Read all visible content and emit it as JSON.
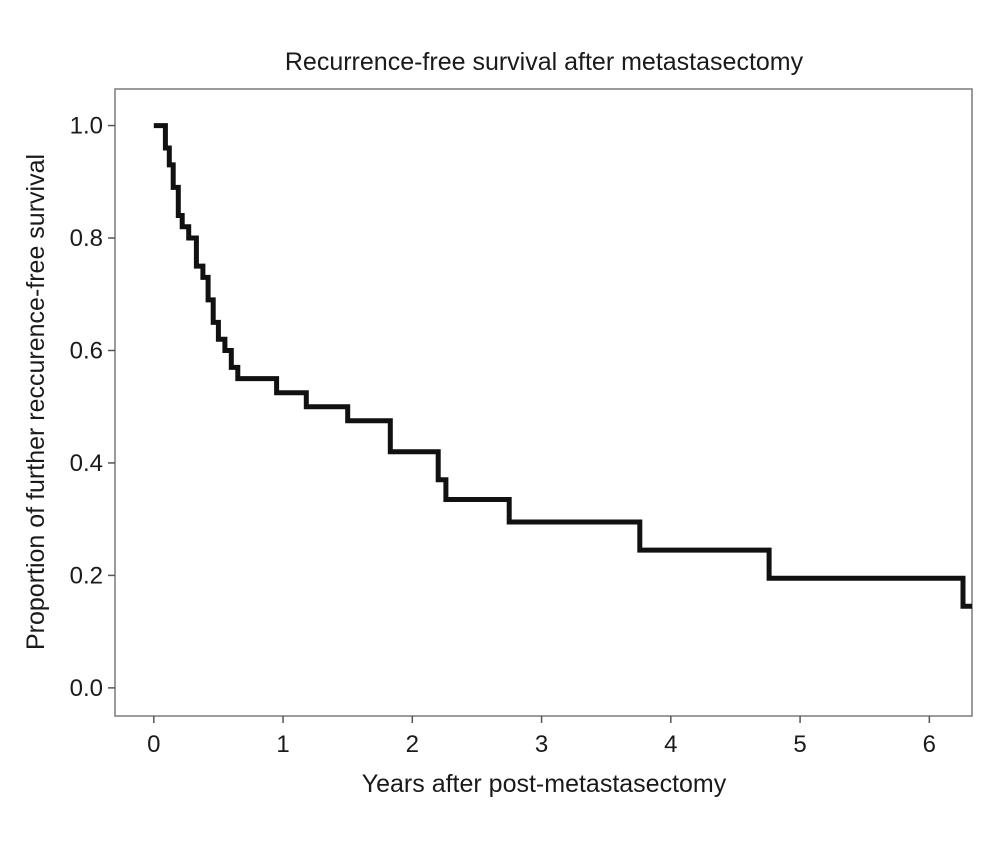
{
  "chart_data": {
    "type": "line",
    "subtype": "kaplan-meier-step",
    "title": "Recurrence-free survival after metastasectomy",
    "xlabel": "Years after post-metastasectomy",
    "ylabel": "Proportion of further reccurence-free survival",
    "xlim": [
      -0.3,
      6.33
    ],
    "ylim": [
      -0.05,
      1.065
    ],
    "x_ticks": [
      0,
      1,
      2,
      3,
      4,
      5,
      6
    ],
    "x_tick_labels": [
      "0",
      "1",
      "2",
      "3",
      "4",
      "5",
      "6"
    ],
    "y_ticks": [
      0.0,
      0.2,
      0.4,
      0.6,
      0.8,
      1.0
    ],
    "y_tick_labels": [
      "0.0",
      "0.2",
      "0.4",
      "0.6",
      "0.8",
      "1.0"
    ],
    "grid": false,
    "line_color": "#111111",
    "series": [
      {
        "x": [
          0.0,
          0.09,
          0.12,
          0.15,
          0.19,
          0.22,
          0.27,
          0.33,
          0.38,
          0.42,
          0.46,
          0.5,
          0.55,
          0.6,
          0.65,
          0.95,
          1.18,
          1.5,
          1.83,
          2.2,
          2.26,
          2.75,
          3.76,
          4.76,
          6.26,
          6.33
        ],
        "y": [
          1.0,
          0.96,
          0.93,
          0.89,
          0.84,
          0.82,
          0.8,
          0.75,
          0.73,
          0.69,
          0.65,
          0.62,
          0.6,
          0.57,
          0.55,
          0.525,
          0.5,
          0.475,
          0.42,
          0.37,
          0.335,
          0.295,
          0.245,
          0.195,
          0.145,
          0.145
        ]
      }
    ]
  }
}
